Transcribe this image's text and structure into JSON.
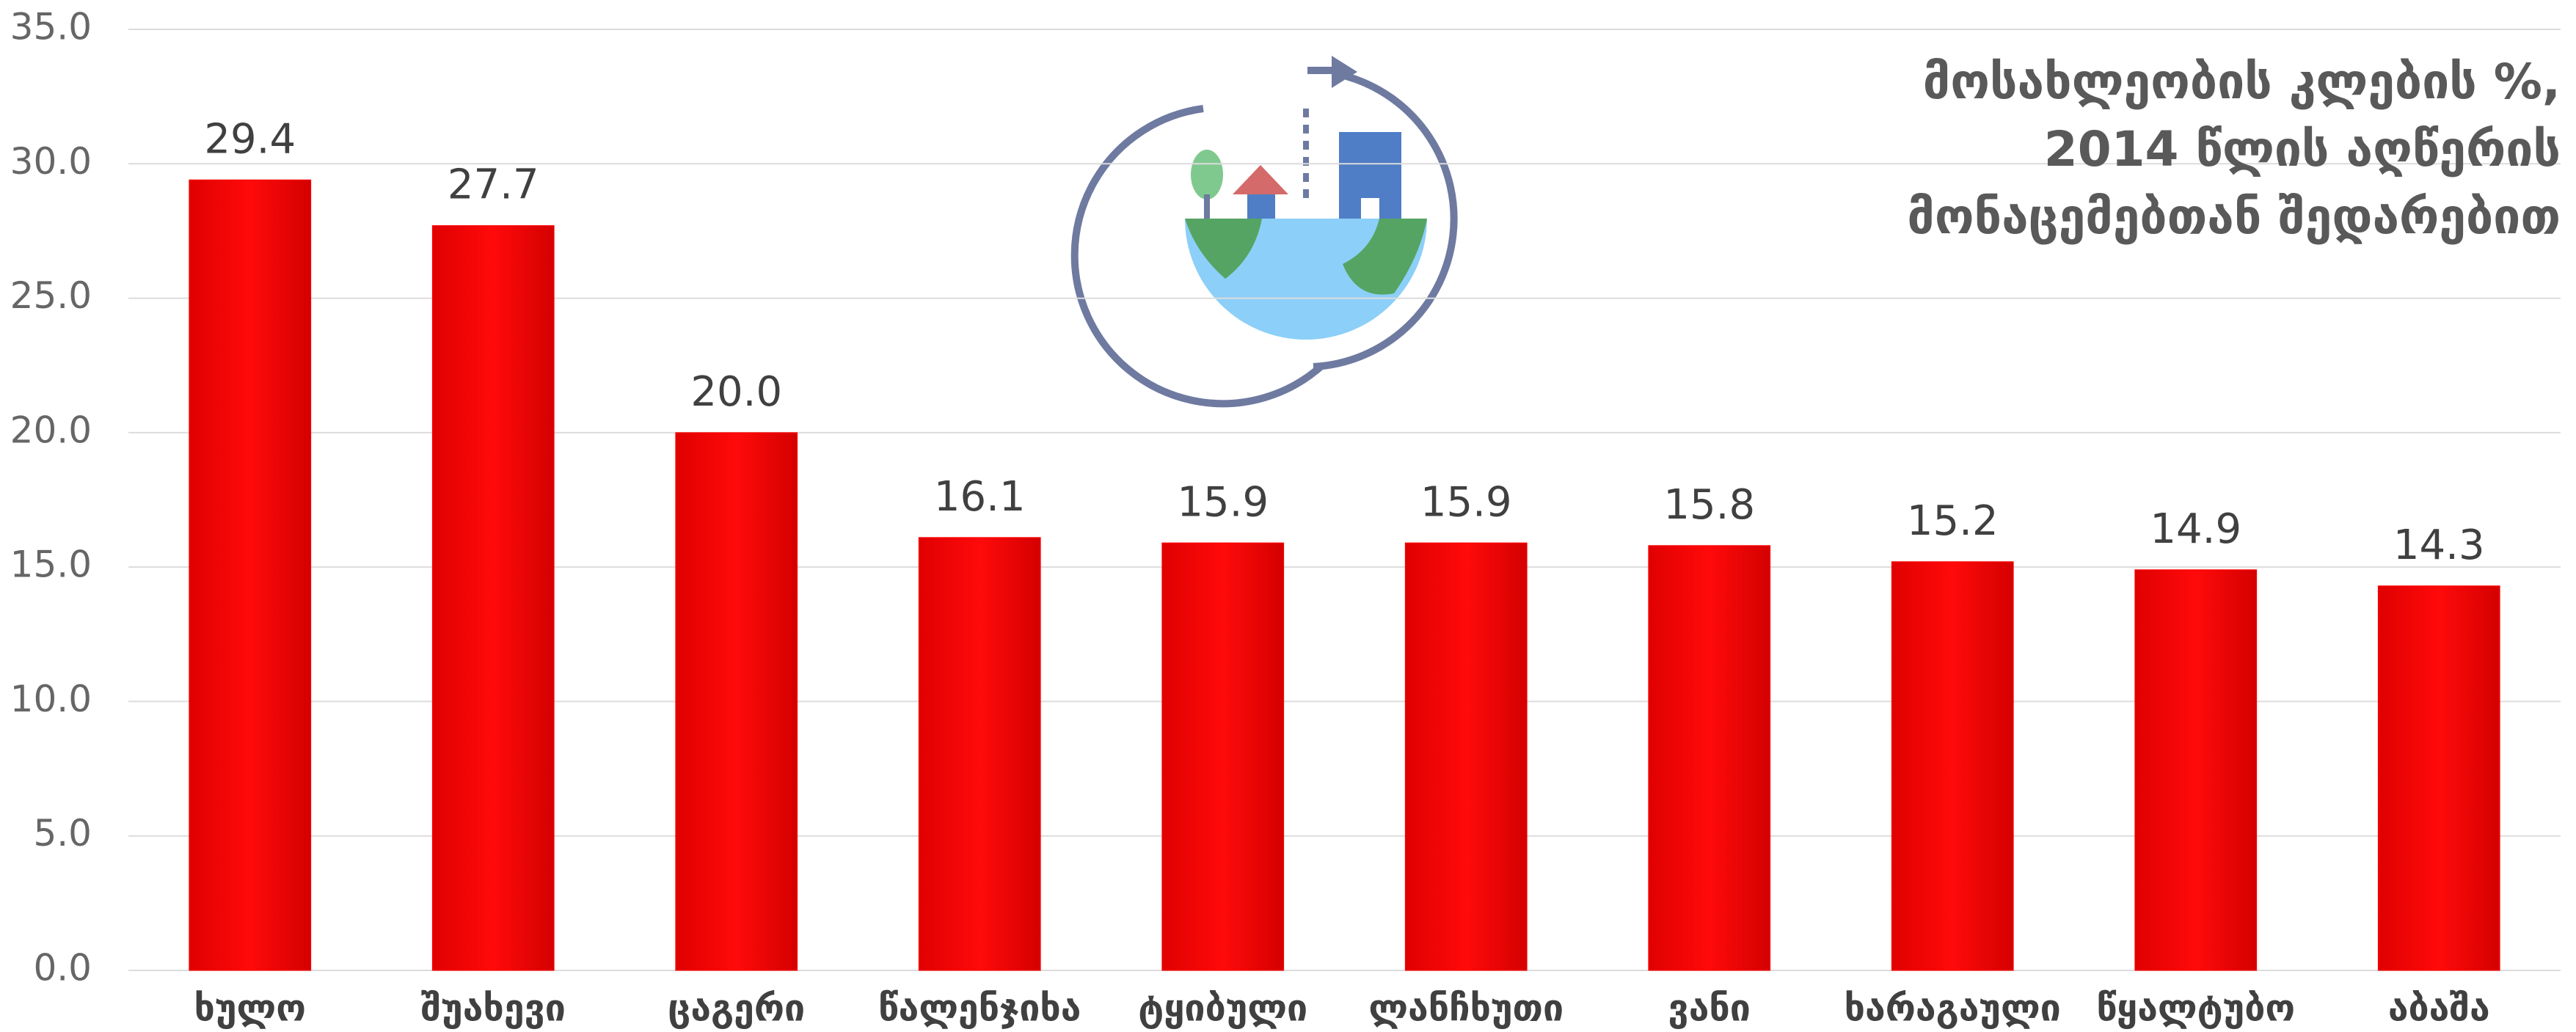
{
  "chart_data": {
    "type": "bar",
    "title": [
      "მოსახლეობის კლების %,",
      "2014 წლის აღწერის",
      "მონაცემებთან შედარებით"
    ],
    "categories": [
      "ხულო",
      "შუახევი",
      "ცაგერი",
      "წალენჯიხა",
      "ტყიბული",
      "ლანჩხუთი",
      "ვანი",
      "ხარაგაული",
      "წყალტუბო",
      "აბაშა"
    ],
    "values": [
      29.4,
      27.7,
      20,
      16.1,
      15.9,
      15.9,
      15.8,
      15.2,
      14.9,
      14.3
    ],
    "value_labels": [
      "29.4",
      "27.7",
      "20.0",
      "16.1",
      "15.9",
      "15.9",
      "15.8",
      "15.2",
      "14.9",
      "14.3"
    ],
    "color": "#ff0000",
    "ylim": [
      0,
      35
    ],
    "yticks": [
      {
        "value": 0,
        "label": "0.0"
      },
      {
        "value": 5,
        "label": "5.0"
      },
      {
        "value": 10,
        "label": "10.0"
      },
      {
        "value": 15,
        "label": "15.0"
      },
      {
        "value": 20,
        "label": "20.0"
      },
      {
        "value": 25,
        "label": "25.0"
      },
      {
        "value": 30,
        "label": "30.0"
      },
      {
        "value": 35,
        "label": "35.0"
      }
    ],
    "grid": true
  }
}
